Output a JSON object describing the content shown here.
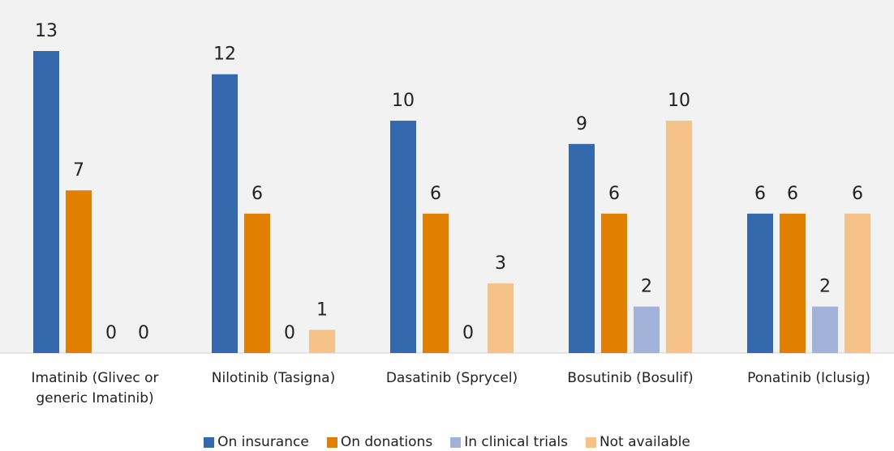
{
  "chart_data": {
    "type": "bar",
    "categories": [
      "Imatinib (Glivec or generic Imatinib)",
      "Nilotinib (Tasigna)",
      "Dasatinib (Sprycel)",
      "Bosutinib (Bosulif)",
      "Ponatinib (Iclusig)"
    ],
    "series": [
      {
        "name": "On insurance",
        "color": "#3569ad",
        "values": [
          13,
          12,
          10,
          9,
          6
        ]
      },
      {
        "name": "On donations",
        "color": "#e07f00",
        "values": [
          7,
          6,
          6,
          6,
          6
        ]
      },
      {
        "name": "In clinical trials",
        "color": "#a2b2d9",
        "values": [
          0,
          0,
          0,
          2,
          2
        ]
      },
      {
        "name": "Not available",
        "color": "#f5c28a",
        "values": [
          0,
          1,
          3,
          10,
          6
        ]
      }
    ],
    "ylim": [
      0,
      13
    ],
    "legend": "bottom"
  }
}
